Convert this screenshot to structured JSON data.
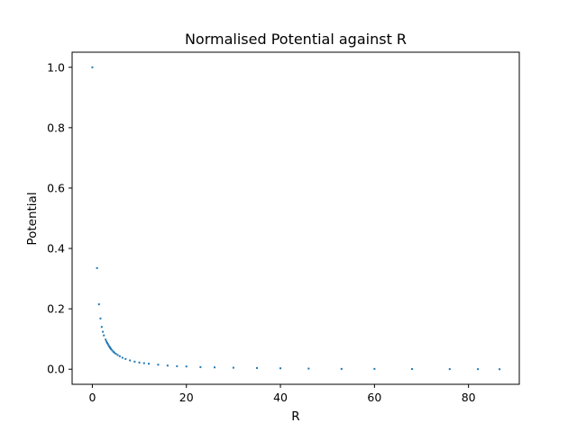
{
  "chart_data": {
    "type": "scatter",
    "title": "Normalised Potential against R",
    "xlabel": "R",
    "ylabel": "Potential",
    "xlim": [
      -4.3,
      90.8
    ],
    "ylim": [
      -0.05,
      1.05
    ],
    "xticks": [
      0,
      20,
      40,
      60,
      80
    ],
    "xtick_labels": [
      "0",
      "20",
      "40",
      "60",
      "80"
    ],
    "yticks": [
      0.0,
      0.2,
      0.4,
      0.6,
      0.8,
      1.0
    ],
    "ytick_labels": [
      "0.0",
      "0.2",
      "0.4",
      "0.6",
      "0.8",
      "1.0"
    ],
    "grid": false,
    "legend": "none",
    "marker_color": "#1f77b4",
    "series": [
      {
        "x": [
          0.0,
          1.0,
          1.41,
          1.73,
          2.0,
          2.24,
          2.45,
          2.83,
          3.0,
          3.16,
          3.32,
          3.46,
          3.61,
          3.74,
          3.87,
          4.0,
          4.24,
          4.47,
          4.69,
          5.0,
          5.39,
          5.83,
          6.4,
          7.07,
          8.0,
          9.0,
          10.0,
          11.0,
          12.0,
          14.0,
          16.0,
          18.0,
          20.0,
          23.0,
          26.0,
          30.0,
          35.0,
          40.0,
          46.0,
          53.0,
          60.0,
          68.0,
          76.0,
          82.0,
          86.6
        ],
        "y": [
          1.0,
          0.335,
          0.215,
          0.168,
          0.14,
          0.124,
          0.112,
          0.098,
          0.092,
          0.087,
          0.083,
          0.079,
          0.075,
          0.072,
          0.069,
          0.066,
          0.062,
          0.058,
          0.055,
          0.051,
          0.047,
          0.043,
          0.038,
          0.034,
          0.029,
          0.025,
          0.022,
          0.02,
          0.018,
          0.015,
          0.012,
          0.01,
          0.009,
          0.007,
          0.006,
          0.005,
          0.004,
          0.003,
          0.002,
          0.001,
          0.001,
          0.0005,
          0.0003,
          0.0002,
          0.0
        ]
      }
    ]
  }
}
